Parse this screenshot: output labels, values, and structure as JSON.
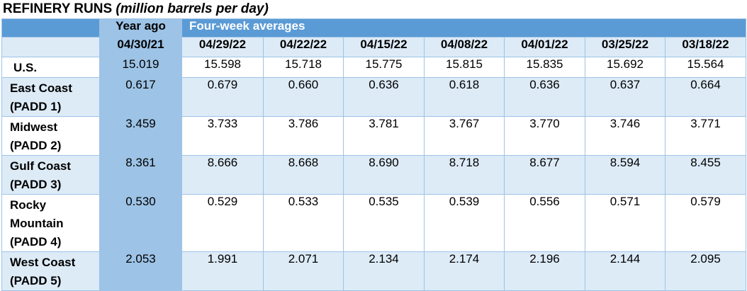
{
  "title": {
    "main": "REFINERY RUNS",
    "unit": "(million barrels per day)"
  },
  "header": {
    "year_ago": "Year ago",
    "four_week": "Four-week averages",
    "dates": [
      "04/30/21",
      "04/29/22",
      "04/22/22",
      "04/15/22",
      "04/08/22",
      "04/01/22",
      "03/25/22",
      "03/18/22"
    ]
  },
  "rows": [
    {
      "label_line1": "U.S.",
      "label_line2": "",
      "values": [
        "15.019",
        "15.598",
        "15.718",
        "15.775",
        "15.815",
        "15.835",
        "15.692",
        "15.564"
      ]
    },
    {
      "label_line1": "East Coast",
      "label_line2": "(PADD 1)",
      "values": [
        "0.617",
        "0.679",
        "0.660",
        "0.636",
        "0.618",
        "0.636",
        "0.637",
        "0.664"
      ]
    },
    {
      "label_line1": "Midwest",
      "label_line2": "(PADD 2)",
      "values": [
        "3.459",
        "3.733",
        "3.786",
        "3.781",
        "3.767",
        "3.770",
        "3.746",
        "3.771"
      ]
    },
    {
      "label_line1": "Gulf Coast",
      "label_line2": "(PADD 3)",
      "values": [
        "8.361",
        "8.666",
        "8.668",
        "8.690",
        "8.718",
        "8.677",
        "8.594",
        "8.455"
      ]
    },
    {
      "label_line1": "Rocky",
      "label_line2": "Mountain",
      "label_line3": "(PADD 4)",
      "values": [
        "0.530",
        "0.529",
        "0.533",
        "0.535",
        "0.539",
        "0.556",
        "0.571",
        "0.579"
      ]
    },
    {
      "label_line1": "West Coast",
      "label_line2": "(PADD 5)",
      "values": [
        "2.053",
        "1.991",
        "2.071",
        "2.134",
        "2.174",
        "2.196",
        "2.144",
        "2.095"
      ]
    }
  ]
}
